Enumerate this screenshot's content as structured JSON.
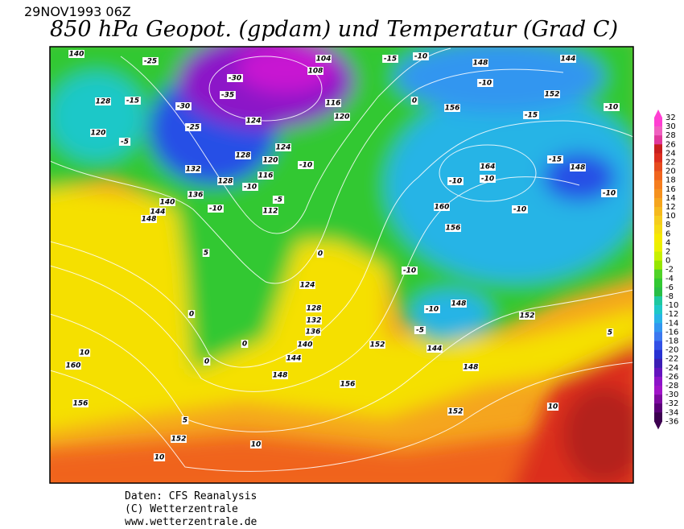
{
  "header": {
    "date": "29NOV1993 06Z",
    "title": "850 hPa Geopot. (gpdam) und  Temperatur (Grad C)"
  },
  "colorbar": {
    "ticks": [
      32,
      30,
      28,
      26,
      24,
      22,
      20,
      18,
      16,
      14,
      12,
      10,
      8,
      6,
      4,
      2,
      0,
      -2,
      -4,
      -6,
      -8,
      -10,
      -12,
      -14,
      -16,
      -18,
      -20,
      -22,
      -24,
      -26,
      -28,
      -30,
      -32,
      -34,
      -36
    ],
    "colors": [
      "#ff3fd2",
      "#f060c0",
      "#e0389c",
      "#c81e1e",
      "#dc2d1e",
      "#e64b1e",
      "#f0641e",
      "#f57d1e",
      "#f5911e",
      "#f5a51e",
      "#f5b91e",
      "#f5cd1e",
      "#f5dc14",
      "#f5eb00",
      "#ebf000",
      "#c8f000",
      "#96e600",
      "#50d228",
      "#32c832",
      "#28be46",
      "#1ec8a0",
      "#1ec8c8",
      "#28b4e6",
      "#3296f0",
      "#3c78f0",
      "#3250e6",
      "#2832d2",
      "#3c1eb4",
      "#6414be",
      "#8c14c8",
      "#a014c8",
      "#7d0aa0",
      "#5a0078",
      "#3c0050"
    ]
  },
  "contour_labels": [
    140,
    -25,
    -30,
    -35,
    -30,
    124,
    128,
    -15,
    120,
    -5,
    -25,
    128,
    124,
    120,
    -10,
    116,
    132,
    128,
    -10,
    136,
    140,
    144,
    148,
    112,
    -5,
    -10,
    116,
    120,
    108,
    104,
    -15,
    -10,
    148,
    144,
    -10,
    156,
    152,
    -15,
    164,
    -10,
    -10,
    -10,
    160,
    156,
    148,
    -15,
    -10,
    -10,
    124,
    128,
    132,
    136,
    140,
    144,
    148,
    152,
    156,
    160,
    156,
    152,
    152,
    148,
    144,
    148,
    152,
    10,
    10,
    10,
    10,
    5,
    5,
    0,
    0,
    0,
    0,
    -5,
    -10,
    -10,
    0,
    5
  ],
  "footer": {
    "source": "Daten: CFS Reanalysis",
    "copyright": "(C) Wetterzentrale",
    "url": "www.wetterzentrale.de"
  }
}
